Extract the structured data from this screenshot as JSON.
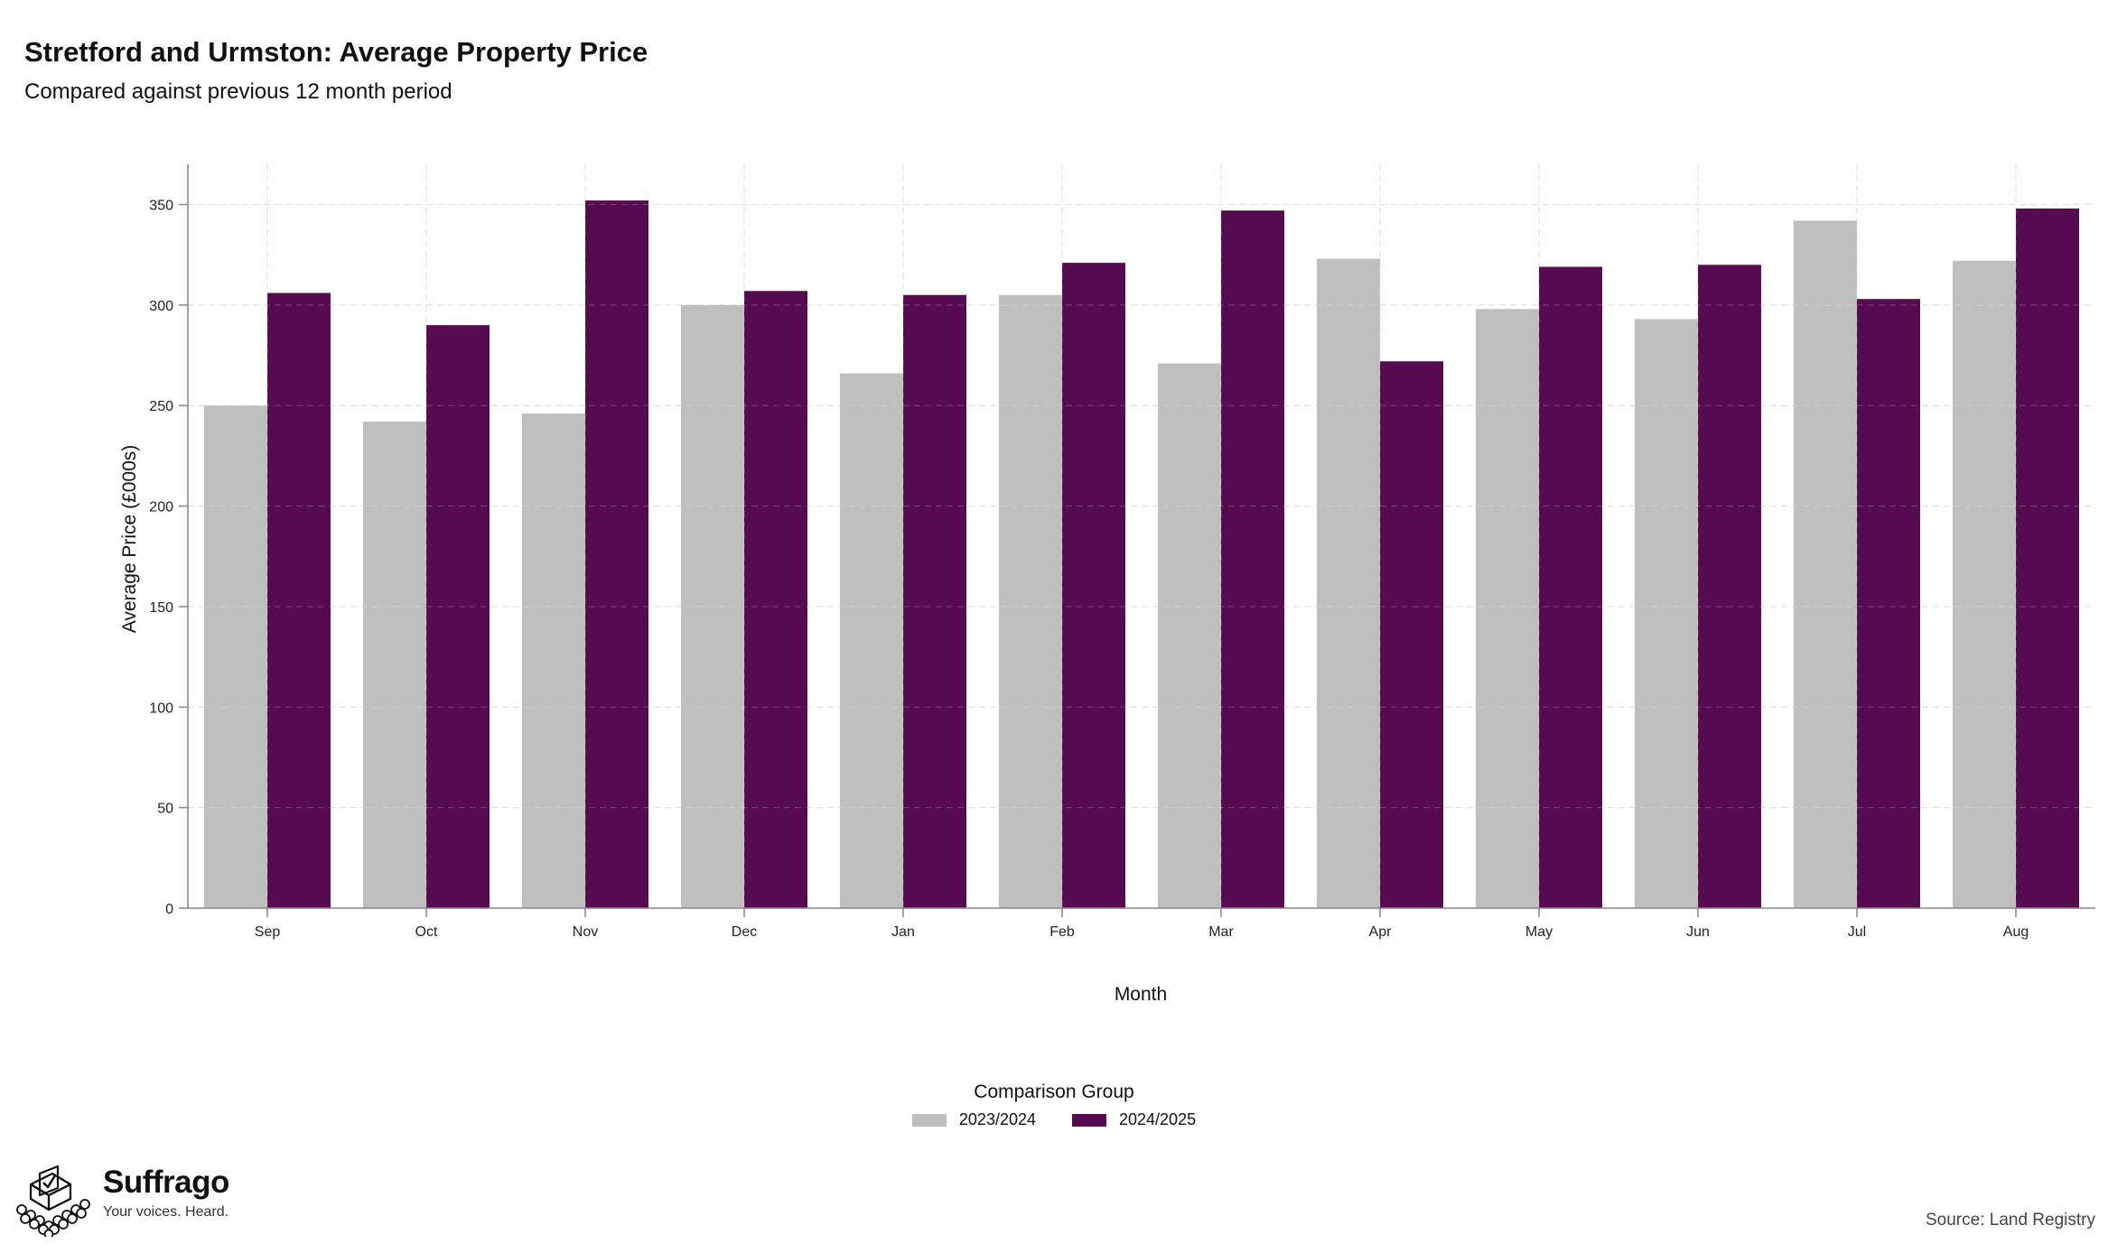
{
  "chart_data": {
    "type": "bar",
    "title": "Stretford and Urmston: Average Property Price",
    "subtitle": "Compared against previous 12 month period",
    "xlabel": "Month",
    "ylabel": "Average Price (£000s)",
    "categories": [
      "Sep",
      "Oct",
      "Nov",
      "Dec",
      "Jan",
      "Feb",
      "Mar",
      "Apr",
      "May",
      "Jun",
      "Jul",
      "Aug"
    ],
    "series": [
      {
        "name": "2023/2024",
        "color": "#bfbfbf",
        "values": [
          250,
          242,
          246,
          300,
          266,
          305,
          271,
          323,
          298,
          293,
          342,
          322
        ]
      },
      {
        "name": "2024/2025",
        "color": "#560b50",
        "values": [
          306,
          290,
          352,
          307,
          305,
          321,
          347,
          272,
          319,
          320,
          303,
          348
        ]
      }
    ],
    "ylim": [
      0,
      370
    ],
    "yticks": [
      0,
      50,
      100,
      150,
      200,
      250,
      300,
      350
    ],
    "grid": true,
    "legend": {
      "title": "Comparison Group",
      "placement": "bottom-center"
    }
  },
  "branding": {
    "name": "Suffrago",
    "tagline": "Your voices. Heard.",
    "icon": "ballot-box-icon"
  },
  "source": "Source: Land Registry"
}
